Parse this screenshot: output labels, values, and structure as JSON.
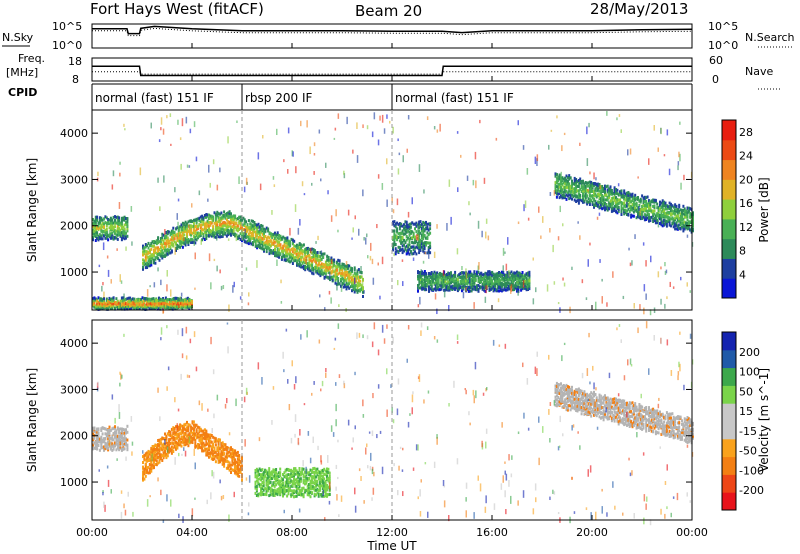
{
  "header": {
    "title": "Fort Hays West (fitACF)",
    "beam": "Beam 20",
    "date": "28/May/2013"
  },
  "labels": {
    "nsky": "N.Sky",
    "nsearch": "N.Search",
    "freq_line1": "Freq.",
    "freq_line2": "[MHz]",
    "nave": "Nave",
    "cpid": "CPID",
    "noise_hi": "10^5",
    "noise_lo": "10^0",
    "freq_hi": "18",
    "freq_lo": "8",
    "nave_hi": "60",
    "nave_lo": "0",
    "xlabel": "Time UT",
    "ylabel": "Slant Range [km]",
    "power_label": "Power [dB]",
    "velocity_label": "Velocity [m s^-1]"
  },
  "cpid_segments": [
    {
      "label": "normal (fast) 151 IF",
      "start": 0,
      "end": 6
    },
    {
      "label": "rbsp 200 IF",
      "start": 6,
      "end": 12
    },
    {
      "label": "normal (fast) 151 IF",
      "start": 12,
      "end": 24
    }
  ],
  "colors": {
    "power_scale": [
      "#0a16d6",
      "#1e3fa0",
      "#2d8a5a",
      "#49b055",
      "#8fcf3c",
      "#e0b226",
      "#ef8420",
      "#ec4a14",
      "#e81e10"
    ],
    "velocity_scale": [
      "#e8131b",
      "#ee4617",
      "#f37f13",
      "#f9a21c",
      "#c8c8c8",
      "#c8c8c8",
      "#7ad44a",
      "#3ca84b",
      "#1f5aa8",
      "#1424b0"
    ],
    "ground_scatter": "#b4b4b4"
  },
  "chart_data": [
    {
      "type": "line",
      "title": "N.Sky / N.Search",
      "xlabel": "",
      "ylabel": "N.Sky",
      "xlim": [
        0,
        24
      ],
      "ylim": [
        0,
        5
      ],
      "yscale": "log10",
      "series": [
        {
          "name": "N.Sky",
          "x": [
            0,
            1.4,
            1.45,
            1.9,
            1.95,
            2.5,
            4,
            6,
            8,
            10,
            12,
            14,
            14.8,
            16,
            18,
            20,
            22,
            24
          ],
          "y": [
            4.0,
            4.0,
            3.0,
            3.0,
            4.1,
            4.5,
            4.0,
            3.6,
            3.6,
            3.6,
            3.5,
            3.5,
            3.2,
            3.6,
            3.6,
            3.6,
            3.8,
            3.9
          ]
        },
        {
          "name": "N.Search",
          "x": [
            0,
            1.4,
            1.45,
            1.9,
            1.95,
            2.5,
            4,
            6,
            8,
            10,
            12,
            14,
            14.8,
            16,
            18,
            20,
            22,
            24
          ],
          "y": [
            4.0,
            4.0,
            3.0,
            3.0,
            4.1,
            4.5,
            4.0,
            3.6,
            3.6,
            3.6,
            3.5,
            3.5,
            3.2,
            3.6,
            3.6,
            3.6,
            3.8,
            3.9
          ]
        }
      ]
    },
    {
      "type": "line",
      "title": "Freq. / Nave",
      "xlabel": "",
      "ylabel": "Freq. [MHz]",
      "xlim": [
        0,
        24
      ],
      "ylim": [
        8,
        18
      ],
      "ylim_right": [
        0,
        60
      ],
      "series": [
        {
          "name": "Freq.",
          "x": [
            0,
            1.9,
            1.95,
            14,
            14.05,
            24
          ],
          "y": [
            14.4,
            14.4,
            10.4,
            10.4,
            14.4,
            14.4
          ]
        },
        {
          "name": "Nave",
          "x": [
            0,
            1.9,
            1.95,
            14,
            14.05,
            24
          ],
          "y": [
            24,
            24,
            18,
            18,
            24,
            24
          ]
        }
      ]
    },
    {
      "type": "heatmap",
      "title": "",
      "xlabel": "Time UT",
      "ylabel": "Slant Range [km]",
      "xlim": [
        0,
        24
      ],
      "ylim": [
        180,
        4500
      ],
      "xticks": [
        "00:00",
        "04:00",
        "08:00",
        "12:00",
        "16:00",
        "20:00",
        "00:00"
      ],
      "yticks": [
        1000,
        2000,
        3000,
        4000
      ],
      "colorbar": {
        "label": "Power [dB]",
        "ticks": [
          4,
          8,
          12,
          16,
          20,
          24,
          28
        ],
        "range": [
          0,
          30
        ]
      },
      "scatter_regions": [
        {
          "name": "early-band",
          "t0": 0.0,
          "t1": 1.4,
          "r0": 1700,
          "r1": 2200,
          "level": 12
        },
        {
          "name": "arc",
          "t0": 2.0,
          "t1": 10.8,
          "r_start": 1300,
          "r_peak": 2050,
          "t_peak": 5.5,
          "r_end": 750,
          "level": 16
        },
        {
          "name": "near-ground",
          "t0": 0.0,
          "t1": 4.0,
          "r0": 200,
          "r1": 420,
          "level": 20
        },
        {
          "name": "post-noon",
          "t0": 12.0,
          "t1": 13.5,
          "r0": 1400,
          "r1": 2100,
          "level": 8
        },
        {
          "name": "afternoon-low",
          "t0": 13.0,
          "t1": 17.5,
          "r0": 600,
          "r1": 1000,
          "level": 8
        },
        {
          "name": "evening-band",
          "t0": 18.5,
          "t1": 24.0,
          "r_start": 2900,
          "r_end": 2100,
          "level": 10
        }
      ]
    },
    {
      "type": "heatmap",
      "title": "",
      "xlabel": "Time UT",
      "ylabel": "Slant Range [km]",
      "xlim": [
        0,
        24
      ],
      "ylim": [
        180,
        4500
      ],
      "xticks": [
        "00:00",
        "04:00",
        "08:00",
        "12:00",
        "16:00",
        "20:00",
        "00:00"
      ],
      "yticks": [
        1000,
        2000,
        3000,
        4000
      ],
      "colorbar": {
        "label": "Velocity [m s^-1]",
        "ticks": [
          -200,
          -100,
          -50,
          -15,
          15,
          50,
          100,
          200
        ]
      },
      "scatter_regions": [
        {
          "name": "early-band",
          "t0": 0.0,
          "t1": 1.4,
          "r0": 1700,
          "r1": 2200,
          "velocity": 0
        },
        {
          "name": "arc-west",
          "t0": 2.0,
          "t1": 6.0,
          "r_start": 1300,
          "r_peak": 2050,
          "velocity": -60
        },
        {
          "name": "arc-east",
          "t0": 6.5,
          "t1": 9.5,
          "r0": 700,
          "r1": 1300,
          "velocity": 50
        },
        {
          "name": "evening-band",
          "t0": 18.5,
          "t1": 24.0,
          "r_start": 2900,
          "r_end": 2100,
          "velocity": 0
        }
      ]
    }
  ]
}
